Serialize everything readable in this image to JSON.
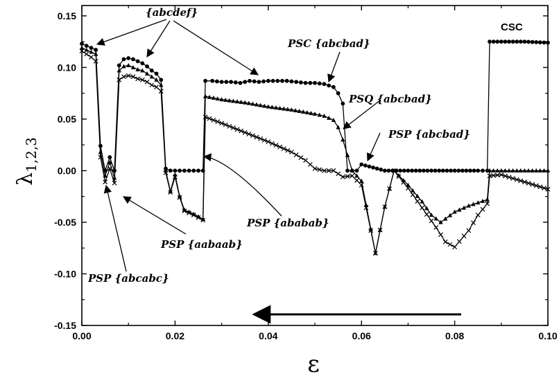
{
  "chart_data": {
    "type": "line",
    "xlabel": "ε",
    "ylabel_main": "λ",
    "ylabel_sub": "1,2,3",
    "xlim": [
      0,
      0.1
    ],
    "ylim": [
      -0.15,
      0.16
    ],
    "x_ticks": [
      0.0,
      0.02,
      0.04,
      0.06,
      0.08,
      0.1
    ],
    "x_tick_labels": [
      "0.00",
      "0.02",
      "0.04",
      "0.06",
      "0.08",
      "0.10"
    ],
    "y_ticks": [
      -0.15,
      -0.1,
      -0.05,
      0.0,
      0.05,
      0.1,
      0.15
    ],
    "y_tick_labels": [
      "-0.15",
      "-0.10",
      "-0.05",
      "0.00",
      "0.05",
      "0.10",
      "0.15"
    ],
    "grid": false,
    "series": [
      {
        "marker": "circle",
        "x": [
          0.0,
          0.001,
          0.002,
          0.003,
          0.004,
          0.005,
          0.006,
          0.007,
          0.008,
          0.009,
          0.01,
          0.011,
          0.012,
          0.013,
          0.014,
          0.015,
          0.016,
          0.017,
          0.018,
          0.019,
          0.02,
          0.021,
          0.022,
          0.023,
          0.024,
          0.025,
          0.026,
          0.0265,
          0.028,
          0.03,
          0.032,
          0.034,
          0.036,
          0.038,
          0.04,
          0.042,
          0.044,
          0.046,
          0.048,
          0.05,
          0.052,
          0.054,
          0.055,
          0.056,
          0.057,
          0.058,
          0.059,
          0.06,
          0.065,
          0.07,
          0.075,
          0.08,
          0.085,
          0.087,
          0.0875,
          0.09,
          0.095,
          0.1
        ],
        "y": [
          0.123,
          0.121,
          0.119,
          0.117,
          0.024,
          0.0,
          0.013,
          0.0,
          0.102,
          0.108,
          0.109,
          0.108,
          0.106,
          0.104,
          0.101,
          0.097,
          0.094,
          0.088,
          0.002,
          0.0,
          0.0,
          0.0,
          0.0,
          0.0,
          0.0,
          0.0,
          0.0,
          0.087,
          0.087,
          0.086,
          0.086,
          0.085,
          0.087,
          0.086,
          0.087,
          0.087,
          0.087,
          0.086,
          0.085,
          0.085,
          0.084,
          0.081,
          0.075,
          0.065,
          0.0,
          0.0,
          0.0,
          0.006,
          0.0,
          0.0,
          0.0,
          0.0,
          0.0,
          0.0,
          0.125,
          0.125,
          0.125,
          0.124
        ]
      },
      {
        "marker": "triangle",
        "x": [
          0.0,
          0.001,
          0.002,
          0.003,
          0.004,
          0.005,
          0.006,
          0.007,
          0.008,
          0.009,
          0.01,
          0.011,
          0.012,
          0.013,
          0.014,
          0.015,
          0.016,
          0.017,
          0.018,
          0.019,
          0.02,
          0.021,
          0.022,
          0.024,
          0.026,
          0.0265,
          0.03,
          0.035,
          0.04,
          0.045,
          0.05,
          0.052,
          0.054,
          0.055,
          0.056,
          0.058,
          0.06,
          0.063,
          0.065,
          0.067,
          0.07,
          0.073,
          0.075,
          0.077,
          0.08,
          0.083,
          0.085,
          0.087,
          0.0875,
          0.09,
          0.095,
          0.1
        ],
        "y": [
          0.119,
          0.117,
          0.115,
          0.113,
          0.018,
          -0.005,
          0.008,
          -0.007,
          0.097,
          0.101,
          0.102,
          0.1,
          0.098,
          0.097,
          0.094,
          0.091,
          0.088,
          0.083,
          0.0,
          -0.02,
          -0.004,
          -0.025,
          -0.038,
          -0.042,
          -0.047,
          0.072,
          0.069,
          0.066,
          0.062,
          0.059,
          0.055,
          0.053,
          0.049,
          0.042,
          0.03,
          0.0,
          -0.01,
          -0.08,
          -0.035,
          0.0,
          -0.014,
          -0.03,
          -0.043,
          -0.05,
          -0.04,
          -0.034,
          -0.031,
          -0.028,
          0.0,
          0.0,
          0.0,
          0.0
        ]
      },
      {
        "marker": "cross",
        "x": [
          0.0,
          0.001,
          0.002,
          0.003,
          0.004,
          0.005,
          0.006,
          0.007,
          0.008,
          0.009,
          0.01,
          0.011,
          0.012,
          0.013,
          0.014,
          0.015,
          0.016,
          0.017,
          0.018,
          0.019,
          0.02,
          0.021,
          0.022,
          0.024,
          0.026,
          0.0265,
          0.03,
          0.035,
          0.04,
          0.045,
          0.048,
          0.05,
          0.052,
          0.054,
          0.056,
          0.058,
          0.06,
          0.063,
          0.065,
          0.067,
          0.07,
          0.073,
          0.076,
          0.078,
          0.08,
          0.083,
          0.085,
          0.087,
          0.0875,
          0.09,
          0.095,
          0.1
        ],
        "y": [
          0.116,
          0.113,
          0.11,
          0.106,
          0.013,
          -0.011,
          0.002,
          -0.012,
          0.088,
          0.091,
          0.092,
          0.091,
          0.089,
          0.088,
          0.086,
          0.083,
          0.081,
          0.077,
          -0.002,
          -0.021,
          -0.006,
          -0.026,
          -0.039,
          -0.043,
          -0.048,
          0.052,
          0.046,
          0.037,
          0.028,
          0.018,
          0.01,
          0.002,
          0.0,
          0.0,
          -0.006,
          -0.005,
          -0.014,
          -0.08,
          -0.035,
          0.0,
          -0.017,
          -0.036,
          -0.055,
          -0.069,
          -0.074,
          -0.058,
          -0.043,
          -0.032,
          -0.005,
          -0.004,
          -0.011,
          -0.018
        ]
      }
    ],
    "annotations": [
      {
        "text": "{abcdef}",
        "style": "italic"
      },
      {
        "text": "PSC {abcbad}",
        "style": "italic"
      },
      {
        "text": "CSC",
        "style": "plain"
      },
      {
        "text": "PSQ {abcbad}",
        "style": "italic"
      },
      {
        "text": "PSP {abcbad}",
        "style": "italic"
      },
      {
        "text": "PSP {ababab}",
        "style": "italic"
      },
      {
        "text": "PSP {aabaab}",
        "style": "italic"
      },
      {
        "text": "PSP {abcabc}",
        "style": "italic"
      }
    ]
  }
}
